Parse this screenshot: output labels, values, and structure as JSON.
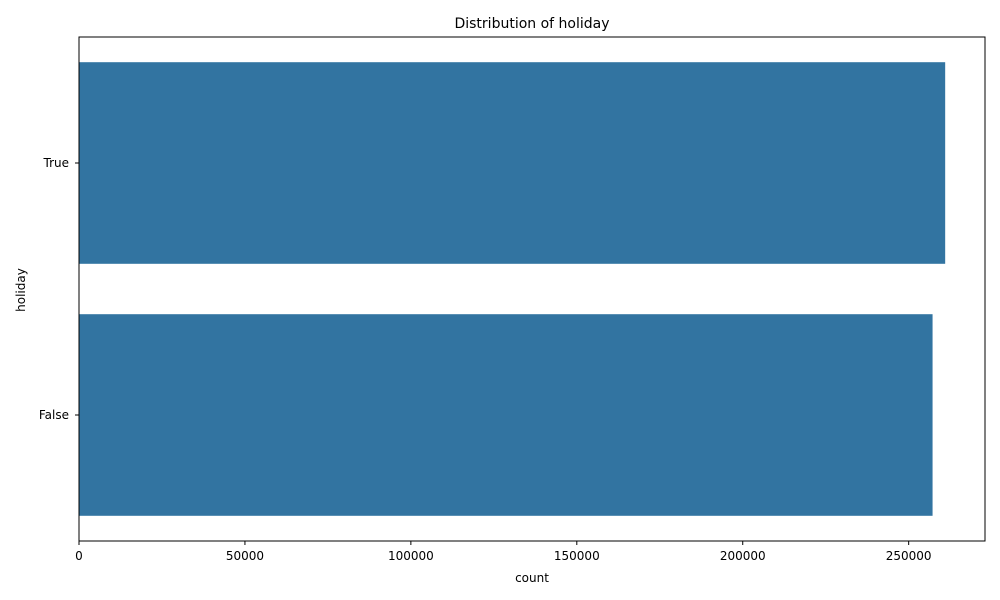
{
  "chart_data": {
    "type": "bar",
    "orientation": "horizontal",
    "title": "Distribution of holiday",
    "xlabel": "count",
    "ylabel": "holiday",
    "categories": [
      "True",
      "False"
    ],
    "values": [
      261000,
      257200
    ],
    "xlim": [
      0,
      273000
    ],
    "xticks": [
      0,
      50000,
      100000,
      150000,
      200000,
      250000
    ],
    "bar_color": "#3274a1",
    "grid": false,
    "legend": "none"
  }
}
